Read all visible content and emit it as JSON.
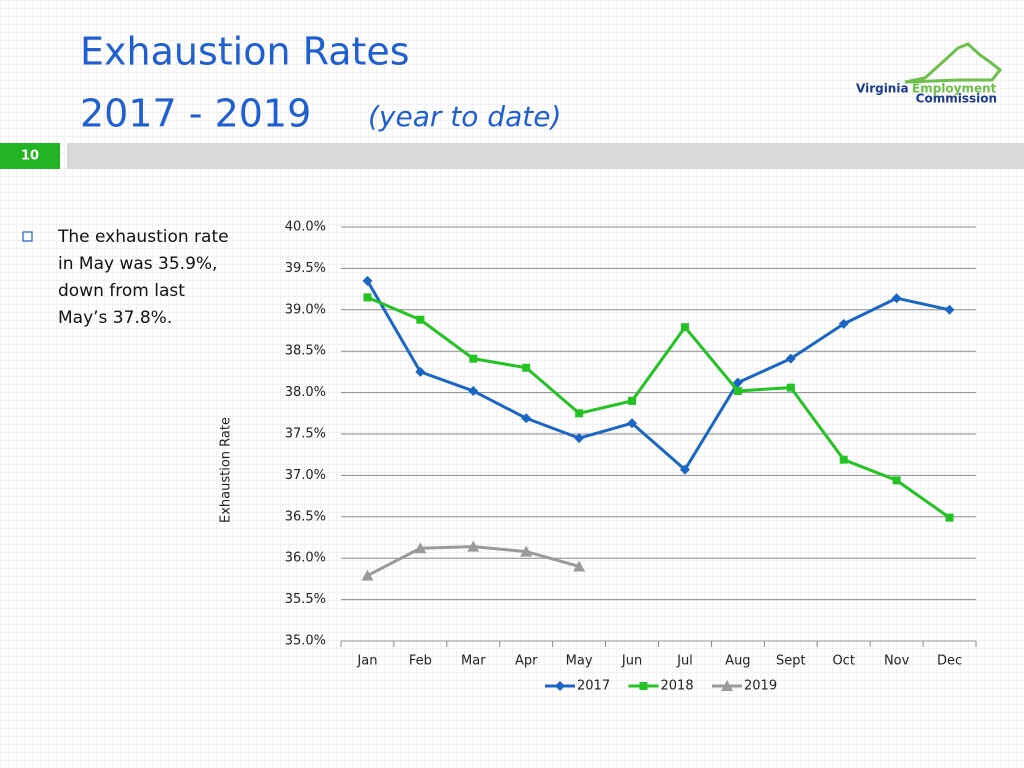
{
  "slide": {
    "title": "Exhaustion Rates",
    "subtitle": "2017 - 2019",
    "subtitle_note": "(year to date)",
    "number": "10",
    "bullet_lines": [
      "The exhaustion rate",
      "in May was 35.9%,",
      "down from last",
      "May’s 37.8%."
    ]
  },
  "logo": {
    "word1": "Virginia",
    "word2": "Employment",
    "word3": "Commission"
  },
  "chart_data": {
    "type": "line",
    "ylabel": "Exhaustion Rate",
    "categories": [
      "Jan",
      "Feb",
      "Mar",
      "Apr",
      "May",
      "Jun",
      "Jul",
      "Aug",
      "Sept",
      "Oct",
      "Nov",
      "Dec"
    ],
    "series": [
      {
        "name": "2017",
        "color": "#1a66c4",
        "marker": "diamond",
        "values": [
          39.35,
          38.25,
          38.02,
          37.69,
          37.45,
          37.63,
          37.07,
          38.12,
          38.41,
          38.83,
          39.14,
          39.0
        ]
      },
      {
        "name": "2018",
        "color": "#22c322",
        "marker": "square",
        "values": [
          39.15,
          38.88,
          38.41,
          38.3,
          37.75,
          37.9,
          38.79,
          38.02,
          38.06,
          37.19,
          36.94,
          36.49
        ]
      },
      {
        "name": "2019",
        "color": "#9a9a9a",
        "marker": "triangle",
        "values": [
          35.79,
          36.12,
          36.14,
          36.08,
          35.9,
          null,
          null,
          null,
          null,
          null,
          null,
          null
        ]
      }
    ],
    "ylim": [
      35,
      40
    ],
    "yticks": [
      {
        "value": 35,
        "label": "35.0%"
      },
      {
        "value": 35.5,
        "label": "35.5%"
      },
      {
        "value": 36,
        "label": "36.0%"
      },
      {
        "value": 36.5,
        "label": "36.5%"
      },
      {
        "value": 37,
        "label": "37.0%"
      },
      {
        "value": 37.5,
        "label": "37.5%"
      },
      {
        "value": 38,
        "label": "38.0%"
      },
      {
        "value": 38.5,
        "label": "38.5%"
      },
      {
        "value": 39,
        "label": "39.0%"
      },
      {
        "value": 39.5,
        "label": "39.5%"
      },
      {
        "value": 40,
        "label": "40.0%"
      }
    ],
    "grid": true,
    "legend": "bottom"
  }
}
